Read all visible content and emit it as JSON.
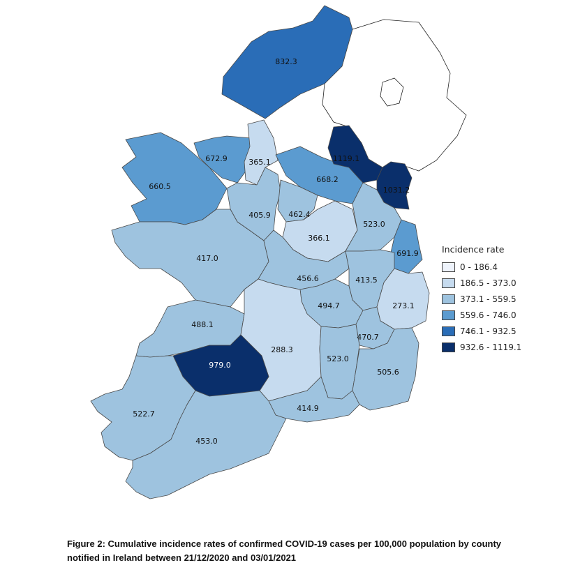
{
  "legend": {
    "title": "Incidence rate",
    "classes": [
      {
        "label": "0 - 186.4",
        "color": "#eef3fb"
      },
      {
        "label": "186.5 - 373.0",
        "color": "#c6dbef"
      },
      {
        "label": "373.1 - 559.5",
        "color": "#9ec3df"
      },
      {
        "label": "559.6 - 746.0",
        "color": "#5b9bd0"
      },
      {
        "label": "746.1 - 932.5",
        "color": "#2a6db7"
      },
      {
        "label": "932.6 - 1119.1",
        "color": "#0a2f6b"
      }
    ]
  },
  "counties": [
    {
      "id": "donegal",
      "value": "832.3"
    },
    {
      "id": "sligo",
      "value": "672.9"
    },
    {
      "id": "leitrim",
      "value": "365.1"
    },
    {
      "id": "mayo",
      "value": "660.5"
    },
    {
      "id": "monaghan",
      "value": "1119.1"
    },
    {
      "id": "cavan",
      "value": "668.2"
    },
    {
      "id": "louth",
      "value": "1031.2"
    },
    {
      "id": "roscommon",
      "value": "405.9"
    },
    {
      "id": "longford",
      "value": "462.4"
    },
    {
      "id": "westmeath",
      "value": "366.1"
    },
    {
      "id": "meath",
      "value": "523.0"
    },
    {
      "id": "dublin",
      "value": "691.9"
    },
    {
      "id": "galway",
      "value": "417.0"
    },
    {
      "id": "offaly",
      "value": "456.6"
    },
    {
      "id": "kildare",
      "value": "413.5"
    },
    {
      "id": "wicklow",
      "value": "273.1"
    },
    {
      "id": "laois",
      "value": "494.7"
    },
    {
      "id": "carlow",
      "value": "470.7"
    },
    {
      "id": "clare",
      "value": "488.1"
    },
    {
      "id": "tipperary",
      "value": "288.3"
    },
    {
      "id": "kilkenny",
      "value": "523.0"
    },
    {
      "id": "wexford",
      "value": "505.6"
    },
    {
      "id": "limerick",
      "value": "979.0"
    },
    {
      "id": "kerry",
      "value": "522.7"
    },
    {
      "id": "cork",
      "value": "453.0"
    },
    {
      "id": "waterford",
      "value": "414.9"
    }
  ],
  "caption": {
    "line1": "Figure 2: Cumulative incidence rates of confirmed COVID-19 cases per 100,000 population by county",
    "line2": "notified in Ireland between 21/12/2020 and 03/01/2021"
  }
}
